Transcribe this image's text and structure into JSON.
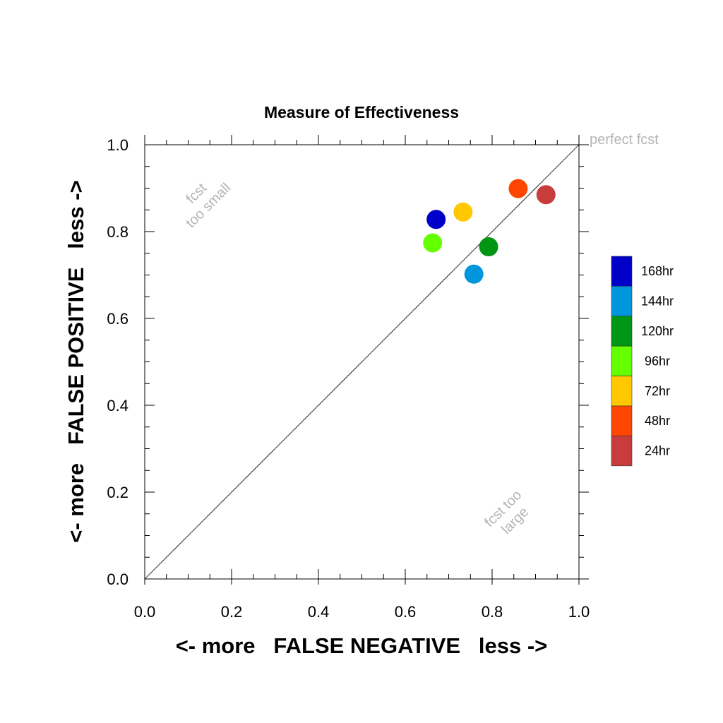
{
  "chart_data": {
    "type": "scatter",
    "title": "Measure of Effectiveness",
    "xlabel": "<- more   FALSE NEGATIVE   less ->",
    "ylabel": "<- more   FALSE POSITIVE   less ->",
    "xlim": [
      0.0,
      1.0
    ],
    "ylim": [
      0.0,
      1.0
    ],
    "xticks": [
      "0.0",
      "0.2",
      "0.4",
      "0.6",
      "0.8",
      "1.0"
    ],
    "yticks": [
      "0.0",
      "0.2",
      "0.4",
      "0.6",
      "0.8",
      "1.0"
    ],
    "grid": false,
    "legend_position": "right",
    "diagonal_line": true,
    "annotations": {
      "perfect": "perfect fcst",
      "small_line1": "fcst",
      "small_line2": "too small",
      "large_line1": "fcst too",
      "large_line2": "large"
    },
    "series": [
      {
        "name": "168hr",
        "color": "#0000c8",
        "x": 0.671,
        "y": 0.828
      },
      {
        "name": "144hr",
        "color": "#0096dc",
        "x": 0.758,
        "y": 0.702
      },
      {
        "name": "120hr",
        "color": "#009614",
        "x": 0.792,
        "y": 0.765
      },
      {
        "name": "96hr",
        "color": "#64ff00",
        "x": 0.663,
        "y": 0.774
      },
      {
        "name": "72hr",
        "color": "#ffc800",
        "x": 0.733,
        "y": 0.845
      },
      {
        "name": "48hr",
        "color": "#ff4600",
        "x": 0.86,
        "y": 0.899
      },
      {
        "name": "24hr",
        "color": "#c83c3c",
        "x": 0.924,
        "y": 0.885
      }
    ]
  }
}
